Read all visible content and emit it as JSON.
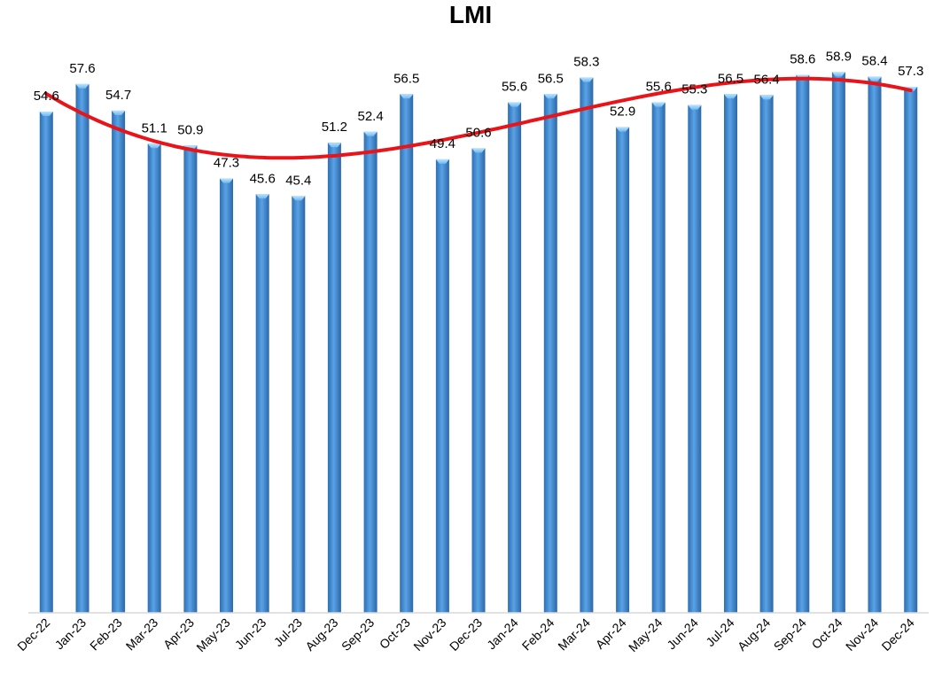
{
  "chart_data": {
    "type": "bar",
    "title": "LMI",
    "categories": [
      "Dec-22",
      "Jan-23",
      "Feb-23",
      "Mar-23",
      "Apr-23",
      "May-23",
      "Jun-23",
      "Jul-23",
      "Aug-23",
      "Sep-23",
      "Oct-23",
      "Nov-23",
      "Dec-23",
      "Jan-24",
      "Feb-24",
      "Mar-24",
      "Apr-24",
      "May-24",
      "Jun-24",
      "Jul-24",
      "Aug-24",
      "Sep-24",
      "Oct-24",
      "Nov-24",
      "Dec-24"
    ],
    "values": [
      54.6,
      57.6,
      54.7,
      51.1,
      50.9,
      47.3,
      45.6,
      45.4,
      51.2,
      52.4,
      56.5,
      49.4,
      50.6,
      55.6,
      56.5,
      58.3,
      52.9,
      55.6,
      55.3,
      56.5,
      56.4,
      58.6,
      58.9,
      58.4,
      57.3
    ],
    "data_labels": [
      "54.6",
      "57.6",
      "54.7",
      "51.1",
      "50.9",
      "47.3",
      "45.6",
      "45.4",
      "51.2",
      "52.4",
      "56.5",
      "49.4",
      "50.6",
      "55.6",
      "56.5",
      "58.3",
      "52.9",
      "55.6",
      "55.3",
      "56.5",
      "56.4",
      "58.6",
      "58.9",
      "58.4",
      "57.3"
    ],
    "trendline": {
      "type": "polynomial",
      "color": "#e8141a"
    },
    "bar_color": "#4a90d9",
    "xlabel": "",
    "ylabel": "",
    "ylim": [
      0,
      60
    ],
    "grid": false,
    "legend": "none"
  }
}
